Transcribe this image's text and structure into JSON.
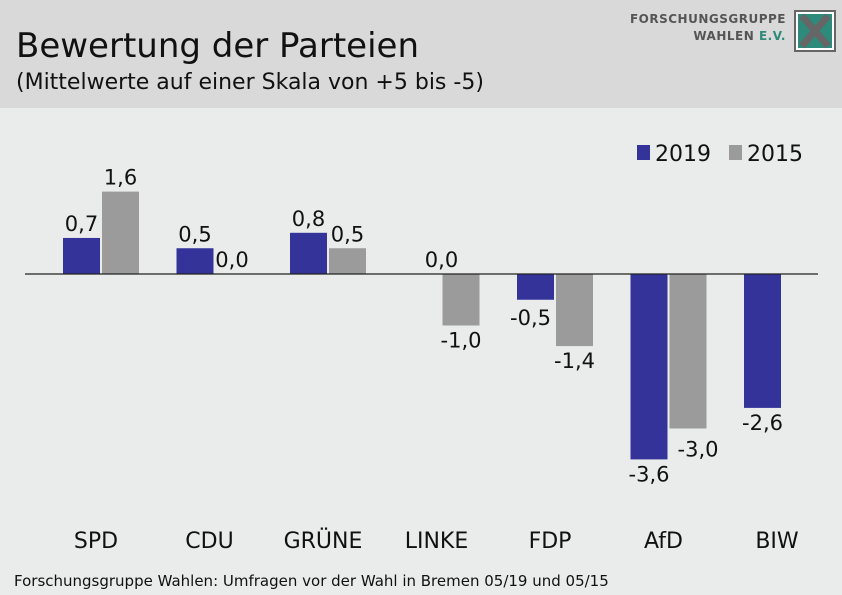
{
  "header": {
    "title": "Bewertung der Parteien",
    "subtitle": "(Mittelwerte auf einer Skala von +5 bis -5)"
  },
  "logo": {
    "line1": "FORSCHUNGSGRUPPE",
    "line2": "WAHLEN",
    "line2_suffix": "E.V.",
    "icon": "fgw-x-logo-icon"
  },
  "footer": {
    "source": "Forschungsgruppe Wahlen: Umfragen vor der Wahl in Bremen 05/19 und 05/15"
  },
  "chart_data": {
    "type": "bar",
    "title": "Bewertung der Parteien",
    "subtitle": "(Mittelwerte auf einer Skala von +5 bis -5)",
    "categories": [
      "SPD",
      "CDU",
      "GRÜNE",
      "LINKE",
      "FDP",
      "AfD",
      "BIW"
    ],
    "series": [
      {
        "name": "2019",
        "color": "#33339a",
        "values": [
          0.7,
          0.5,
          0.8,
          0.0,
          -0.5,
          -3.6,
          -2.6
        ],
        "labels": [
          "0,7",
          "0,5",
          "0,8",
          "0,0",
          "-0,5",
          "-3,6",
          "-2,6"
        ]
      },
      {
        "name": "2015",
        "color": "#9b9b9b",
        "values": [
          1.6,
          0.0,
          0.5,
          -1.0,
          -1.4,
          -3.0,
          null
        ],
        "labels": [
          "1,6",
          "0,0",
          "0,5",
          "-1,0",
          "-1,4",
          "-3,0",
          ""
        ]
      }
    ],
    "ylim": [
      -3.6,
      1.6
    ],
    "grid": false,
    "legend": "top-right"
  }
}
